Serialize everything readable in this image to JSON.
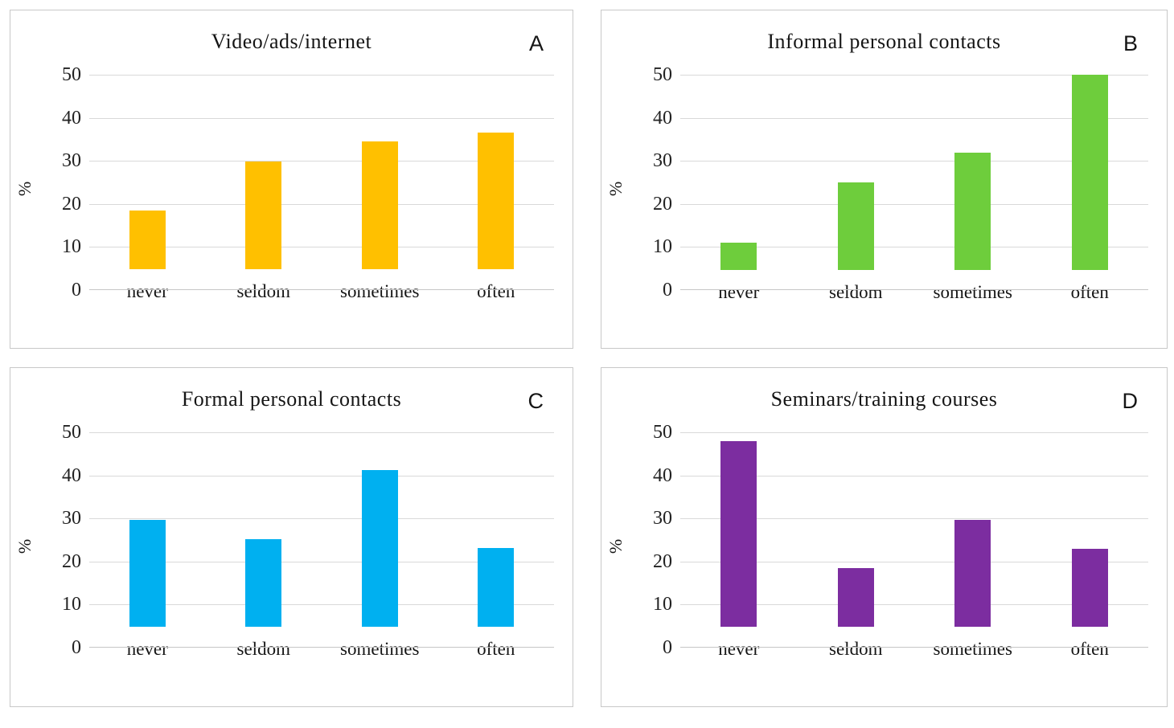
{
  "page": {
    "background": "#ffffff"
  },
  "styles": {
    "gridline_color": "#d9d9d9",
    "axis_line_color": "#c6c6c6",
    "panel_border_color": "#c8c8c8",
    "text_color": "#151515"
  },
  "chart_data": [
    {
      "type": "bar",
      "panel_letter": "A",
      "title": "Video/ads/internet",
      "categories": [
        "never",
        "seldom",
        "sometimes",
        "often"
      ],
      "values": [
        13.6,
        25.0,
        29.6,
        31.8
      ],
      "xlabel": "",
      "ylabel": "%",
      "ylim": [
        0,
        50
      ],
      "yticks": [
        0,
        10,
        20,
        30,
        40,
        50
      ],
      "grid": true,
      "legend": false,
      "bar_color": "#FFC000"
    },
    {
      "type": "bar",
      "panel_letter": "B",
      "title": "Informal personal contacts",
      "categories": [
        "never",
        "seldom",
        "sometimes",
        "often"
      ],
      "values": [
        6.5,
        20.4,
        27.3,
        45.4
      ],
      "xlabel": "",
      "ylabel": "%",
      "ylim": [
        0,
        50
      ],
      "yticks": [
        0,
        10,
        20,
        30,
        40,
        50
      ],
      "grid": true,
      "legend": false,
      "bar_color": "#6ECD3C"
    },
    {
      "type": "bar",
      "panel_letter": "C",
      "title": "Formal personal contacts",
      "categories": [
        "never",
        "seldom",
        "sometimes",
        "often"
      ],
      "values": [
        24.9,
        20.3,
        36.4,
        18.2
      ],
      "xlabel": "",
      "ylabel": "%",
      "ylim": [
        0,
        50
      ],
      "yticks": [
        0,
        10,
        20,
        30,
        40,
        50
      ],
      "grid": true,
      "legend": false,
      "bar_color": "#00B0F0"
    },
    {
      "type": "bar",
      "panel_letter": "D",
      "title": "Seminars/training courses",
      "categories": [
        "never",
        "seldom",
        "sometimes",
        "often"
      ],
      "values": [
        43.1,
        13.6,
        24.9,
        18.1
      ],
      "xlabel": "",
      "ylabel": "%",
      "ylim": [
        0,
        50
      ],
      "yticks": [
        0,
        10,
        20,
        30,
        40,
        50
      ],
      "grid": true,
      "legend": false,
      "bar_color": "#7C2DA0"
    }
  ]
}
